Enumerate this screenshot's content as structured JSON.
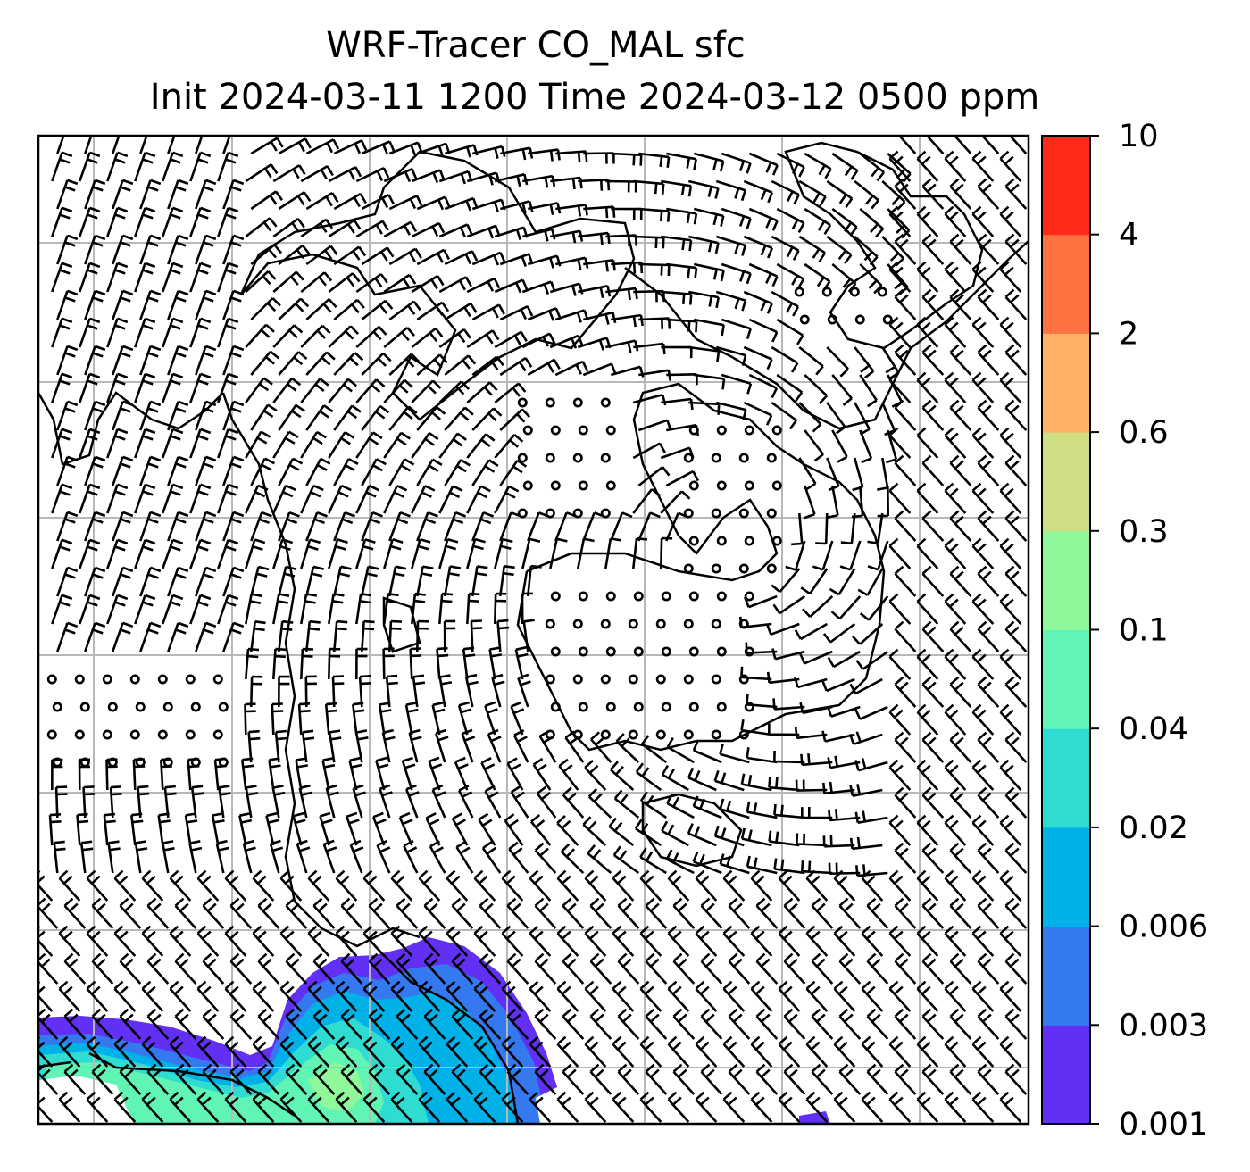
{
  "chart_data": {
    "type": "heatmap",
    "title": "WRF-Tracer CO_MAL sfc",
    "subtitle": "Init 2024-03-11 1200 Time 2024-03-12 0500 ppm",
    "xlabel": "",
    "ylabel": "",
    "grid": true,
    "variable": "CO_MAL",
    "units": "ppm",
    "colorbar": {
      "placement": "right",
      "levels": [
        "0.001",
        "0.003",
        "0.006",
        "0.02",
        "0.04",
        "0.1",
        "0.3",
        "0.6",
        "2",
        "4",
        "10"
      ],
      "colors": [
        "#6230f5",
        "#3479f0",
        "#00b1e8",
        "#2fdcd2",
        "#60f5b5",
        "#90f79b",
        "#cfde82",
        "#fdb264",
        "#ff7140",
        "#ff2b18"
      ]
    },
    "overlays": [
      "wind barbs",
      "coastlines"
    ]
  }
}
